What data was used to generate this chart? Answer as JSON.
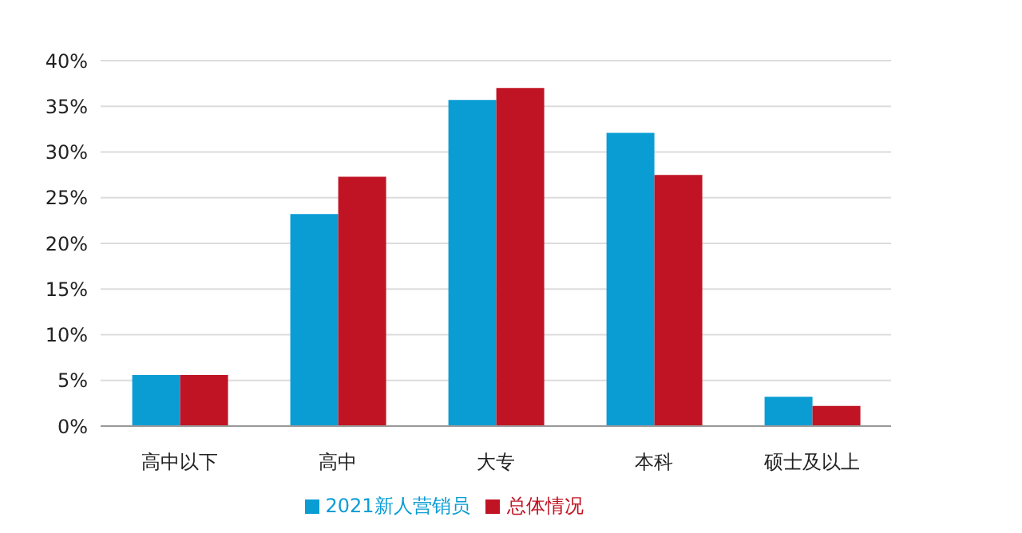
{
  "chart_data": {
    "type": "bar",
    "categories": [
      "高中以下",
      "高中",
      "大专",
      "本科",
      "硕士及以上"
    ],
    "series": [
      {
        "name": "2021新人营销员",
        "color": "#0a9dd4",
        "values": [
          5.6,
          23.2,
          35.7,
          32.1,
          3.2
        ]
      },
      {
        "name": "总体情况",
        "color": "#c01424",
        "values": [
          5.6,
          27.3,
          37.0,
          27.5,
          2.2
        ]
      }
    ],
    "ylim": [
      0,
      40
    ],
    "yticks": [
      {
        "value": 0,
        "label": "0%"
      },
      {
        "value": 5,
        "label": "5%"
      },
      {
        "value": 10,
        "label": "10%"
      },
      {
        "value": 15,
        "label": "15%"
      },
      {
        "value": 20,
        "label": "20%"
      },
      {
        "value": 25,
        "label": "25%"
      },
      {
        "value": 30,
        "label": "30%"
      },
      {
        "value": 35,
        "label": "35%"
      },
      {
        "value": 40,
        "label": "40%"
      }
    ],
    "grid": "y",
    "legend": "bottom"
  }
}
